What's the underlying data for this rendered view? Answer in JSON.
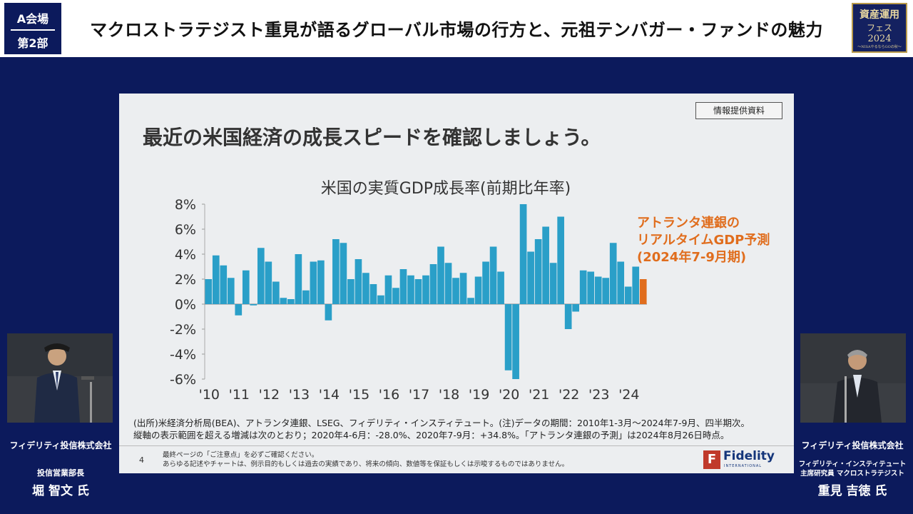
{
  "header": {
    "venue_line1": "A会場",
    "venue_line2": "第2部",
    "title": "マクロストラテジスト重見が語るグローバル市場の行方と、元祖テンバガー・ファンドの魅力",
    "fest_logo": {
      "line1": "資産運用",
      "line2": "フェス",
      "line3": "2024",
      "line4": "～NISAやるならGOの秋～"
    }
  },
  "slide": {
    "tag": "情報提供資料",
    "heading": "最近の米国経済の成長スピードを確認しましょう。",
    "notes": [
      "(出所)米経済分析局(BEA)、アトランタ連銀、LSEG、フィデリティ・インスティテュート。(注)データの期間：2010年1-3月～2024年7-9月、四半期次。",
      "縦軸の表示範囲を超える増減は次のとおり；2020年4-6月：-28.0%、2020年7-9月：+34.8%。「アトランタ連銀の予測」は2024年8月26日時点。"
    ],
    "page_number": "4",
    "disclaimer": [
      "最終ページの「ご注意点」を必ずご確認ください。",
      "あらゆる記述やチャートは、例示目的もしくは過去の実績であり、将来の傾向、数値等を保証もしくは示唆するものではありません。"
    ],
    "logo": {
      "name": "Fidelity",
      "sub": "INTERNATIONAL"
    }
  },
  "colors": {
    "bar": "#2a9fc8",
    "forecast": "#e06d1d",
    "background": "#0c1a5c"
  },
  "chart_data": {
    "type": "bar",
    "title": "米国の実質GDP成長率(前期比年率)",
    "ylim": [
      -6,
      8
    ],
    "yticks": [
      8,
      6,
      4,
      2,
      0,
      -2,
      -4,
      -6
    ],
    "ytick_labels": [
      "8%",
      "6%",
      "4%",
      "2%",
      "0%",
      "-2%",
      "-4%",
      "-6%"
    ],
    "xtick_labels": [
      "'10",
      "'11",
      "'12",
      "'13",
      "'14",
      "'15",
      "'16",
      "'17",
      "'18",
      "'19",
      "'20",
      "'21",
      "'22",
      "'23",
      "'24"
    ],
    "xtick_start_index": 0,
    "bars_per_year": 4,
    "series": [
      {
        "name": "実質GDP成長率",
        "values": [
          2.0,
          3.9,
          3.1,
          2.1,
          -0.9,
          2.7,
          -0.1,
          4.5,
          3.4,
          1.8,
          0.5,
          0.4,
          4.0,
          1.1,
          3.4,
          3.5,
          -1.3,
          5.2,
          4.9,
          2.0,
          3.6,
          2.5,
          1.6,
          0.7,
          2.3,
          1.3,
          2.8,
          2.3,
          2.0,
          2.3,
          3.2,
          4.6,
          3.3,
          2.1,
          2.5,
          0.5,
          2.2,
          3.4,
          4.6,
          2.6,
          -5.3,
          -6.0,
          8.0,
          4.2,
          5.2,
          6.2,
          3.3,
          7.0,
          -2.0,
          -0.6,
          2.7,
          2.6,
          2.2,
          2.1,
          4.9,
          3.4,
          1.4,
          3.0
        ]
      },
      {
        "name": "アトランタ連銀のリアルタイムGDP予測(2024年7-9月期)",
        "values": [
          2.0
        ]
      }
    ],
    "annotation": [
      "アトランタ連銀の",
      "リアルタイムGDP予測",
      "(2024年7-9月期)"
    ]
  },
  "speakers": {
    "left": {
      "company": "フィデリティ投信株式会社",
      "role": "投信営業部長",
      "name": "堀 智文 氏"
    },
    "right": {
      "company": "フィデリティ投信株式会社",
      "role_line1": "フィデリティ・インスティテュート",
      "role_line2": "主席研究員 マクロストラテジスト",
      "name": "重見 吉徳 氏"
    }
  }
}
